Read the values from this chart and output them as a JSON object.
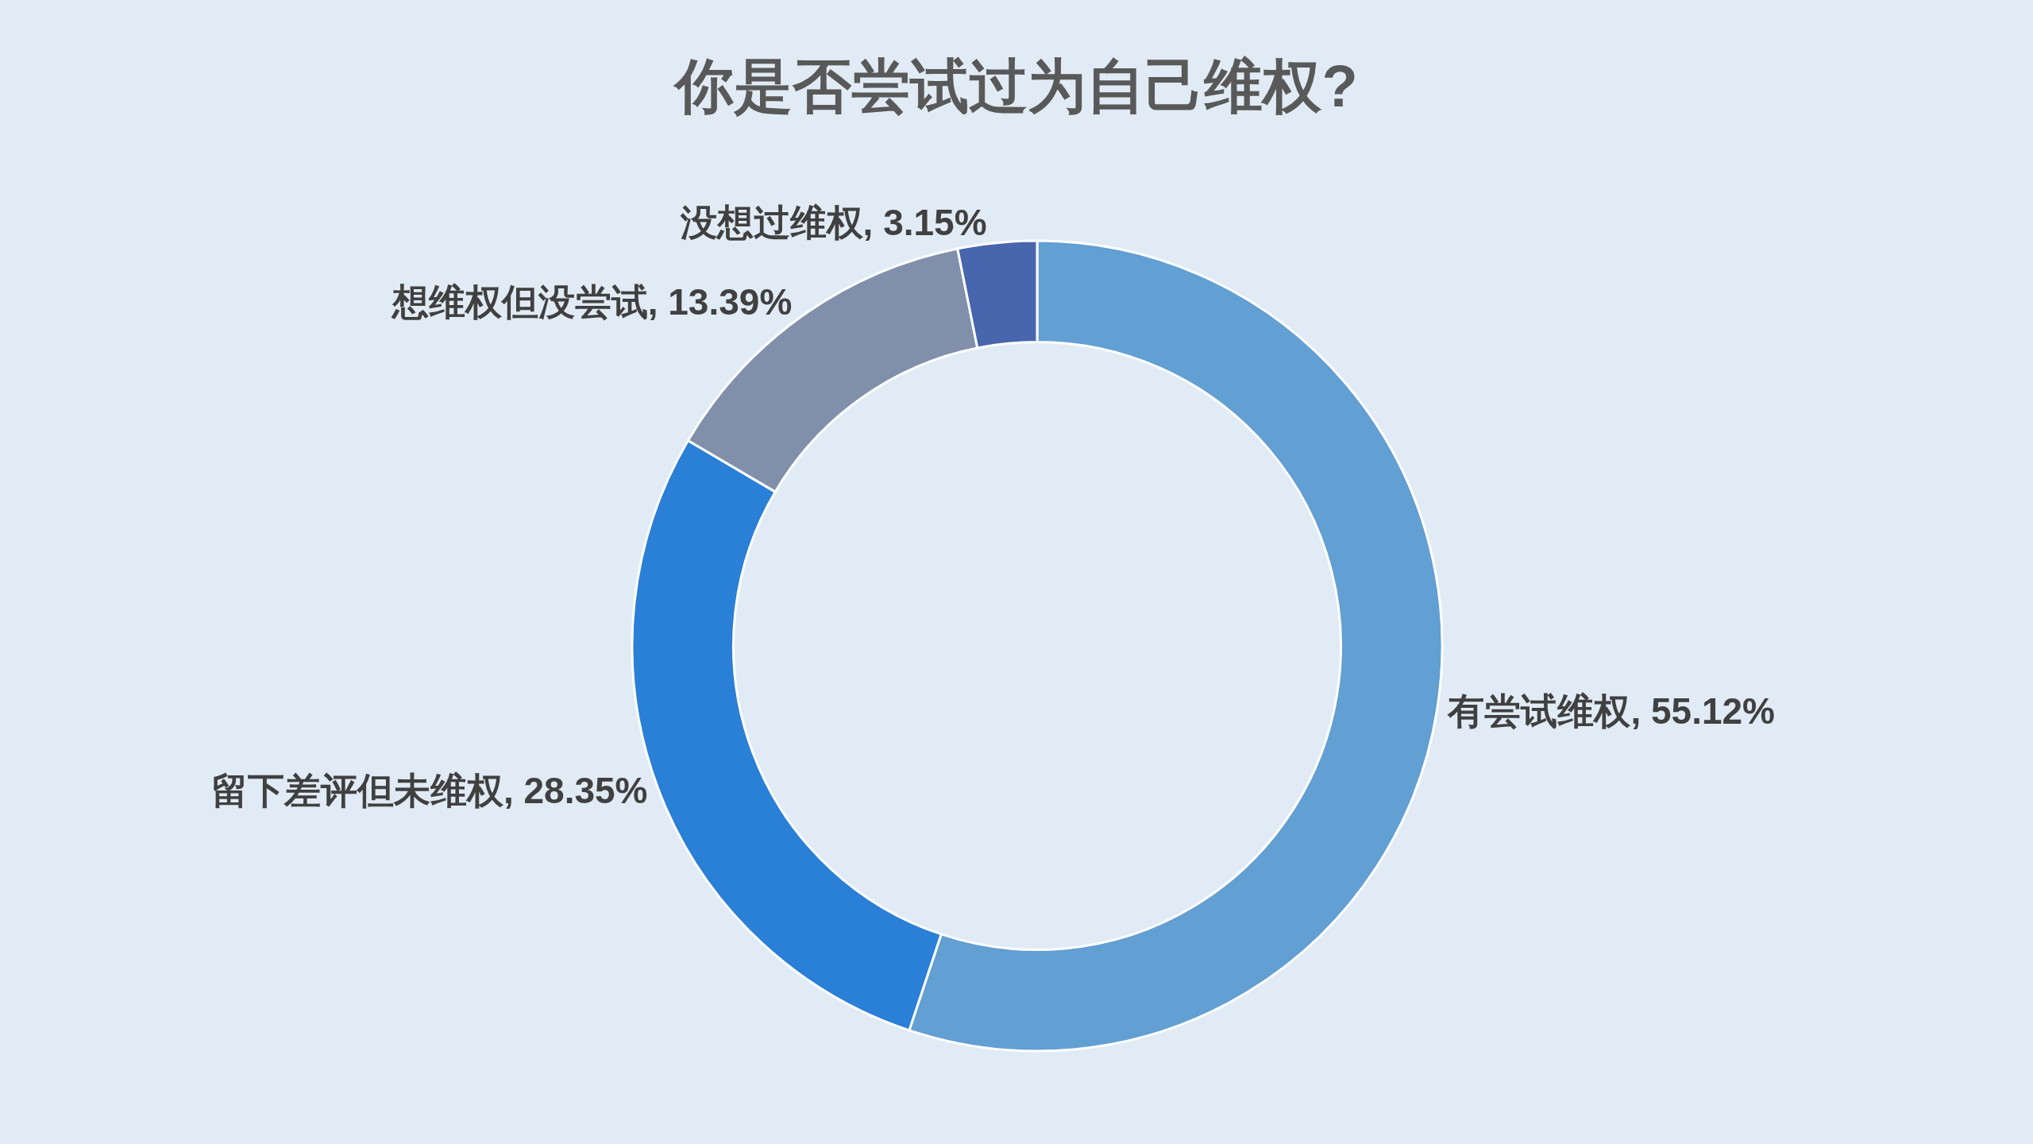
{
  "chart_data": {
    "type": "donut",
    "title": "你是否尝试过为自己维权?",
    "categories": [
      "有尝试维权",
      "留下差评但未维权",
      "想维权但没尝试",
      "没想过维权"
    ],
    "values": [
      55.12,
      28.35,
      13.39,
      3.15
    ],
    "colors": [
      "#629fd3",
      "#2a7fd7",
      "#8190aa",
      "#4866ae"
    ],
    "value_labels": [
      "55.12%",
      "28.35%",
      "13.39%",
      "3.15%"
    ],
    "legend": false
  }
}
